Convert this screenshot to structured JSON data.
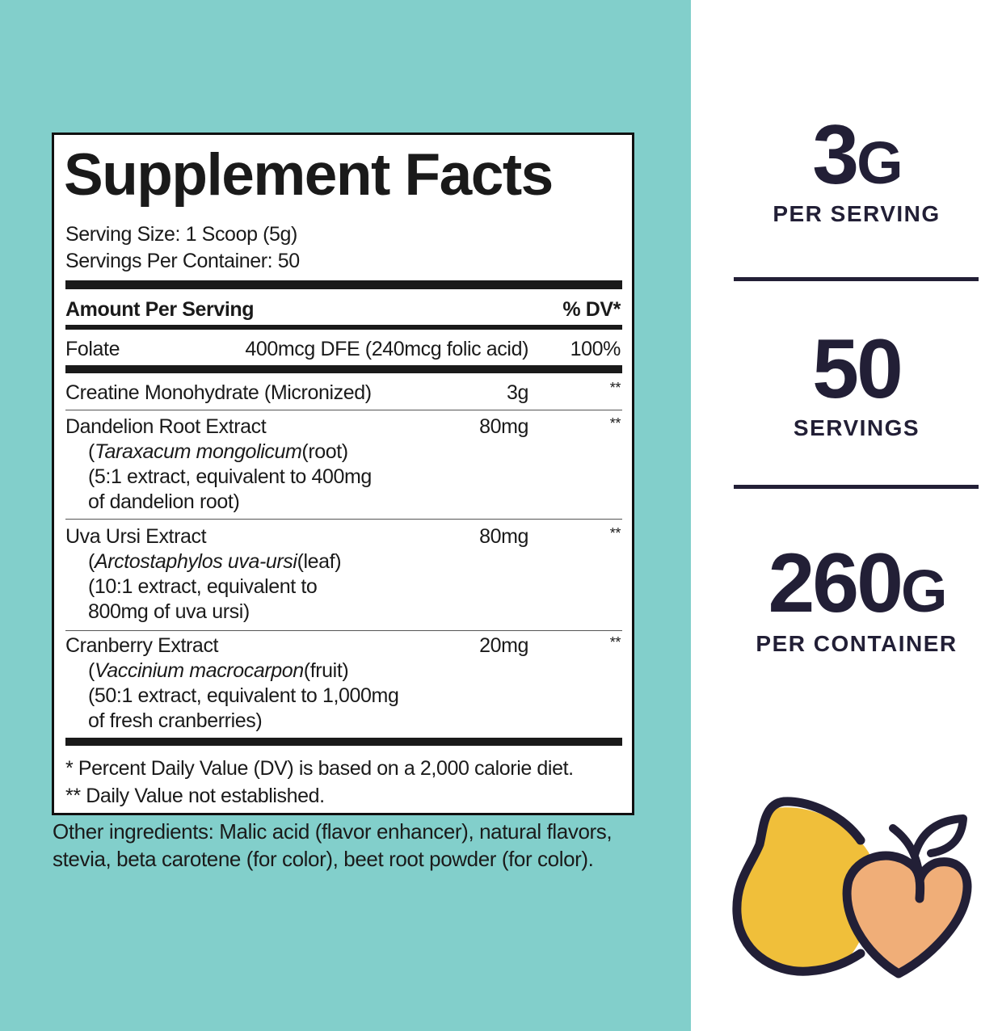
{
  "label": {
    "title": "Supplement Facts",
    "serving_size": "Serving Size: 1 Scoop (5g)",
    "servings_per_container": "Servings Per Container: 50",
    "amount_header": "Amount Per Serving",
    "dv_header": "% DV*",
    "rows": [
      {
        "name": "Folate",
        "amount": "400mcg DFE (240mcg folic acid)",
        "dv": "100%"
      },
      {
        "name": "Creatine Monohydrate (Micronized)",
        "amount": "3g",
        "dv": "**"
      },
      {
        "name": "Dandelion Root Extract",
        "latin": "Taraxacum mongolicum",
        "part": "(root)",
        "detail1": "(5:1 extract, equivalent to 400mg",
        "detail2": "of dandelion root)",
        "amount": "80mg",
        "dv": "**"
      },
      {
        "name": "Uva Ursi Extract",
        "latin": "Arctostaphylos uva-ursi",
        "part": "(leaf)",
        "detail1": "(10:1 extract, equivalent to",
        "detail2": "800mg of uva ursi)",
        "amount": "80mg",
        "dv": "**"
      },
      {
        "name": "Cranberry Extract",
        "latin": "Vaccinium macrocarpon",
        "part": "(fruit)",
        "detail1": "(50:1 extract, equivalent to 1,000mg",
        "detail2": "of fresh cranberries)",
        "amount": "20mg",
        "dv": "**"
      }
    ],
    "footnote1": "* Percent Daily Value (DV) is based on a 2,000 calorie diet.",
    "footnote2": "** Daily Value not established."
  },
  "other_ingredients": "Other ingredients: Malic acid (flavor enhancer), natural flavors, stevia, beta carotene (for color), beet root powder (for color).",
  "stats": [
    {
      "value": "3",
      "unit": "G",
      "caption": "PER SERVING"
    },
    {
      "value": "50",
      "unit": "",
      "caption": "SERVINGS"
    },
    {
      "value": "260",
      "unit": "G",
      "caption": "PER CONTAINER"
    }
  ],
  "icon": "pear-and-peach-icon",
  "colors": {
    "teal": "#82cfcb",
    "navy": "#221f36",
    "pear": "#f0bf3a",
    "peach": "#f0ae78"
  }
}
